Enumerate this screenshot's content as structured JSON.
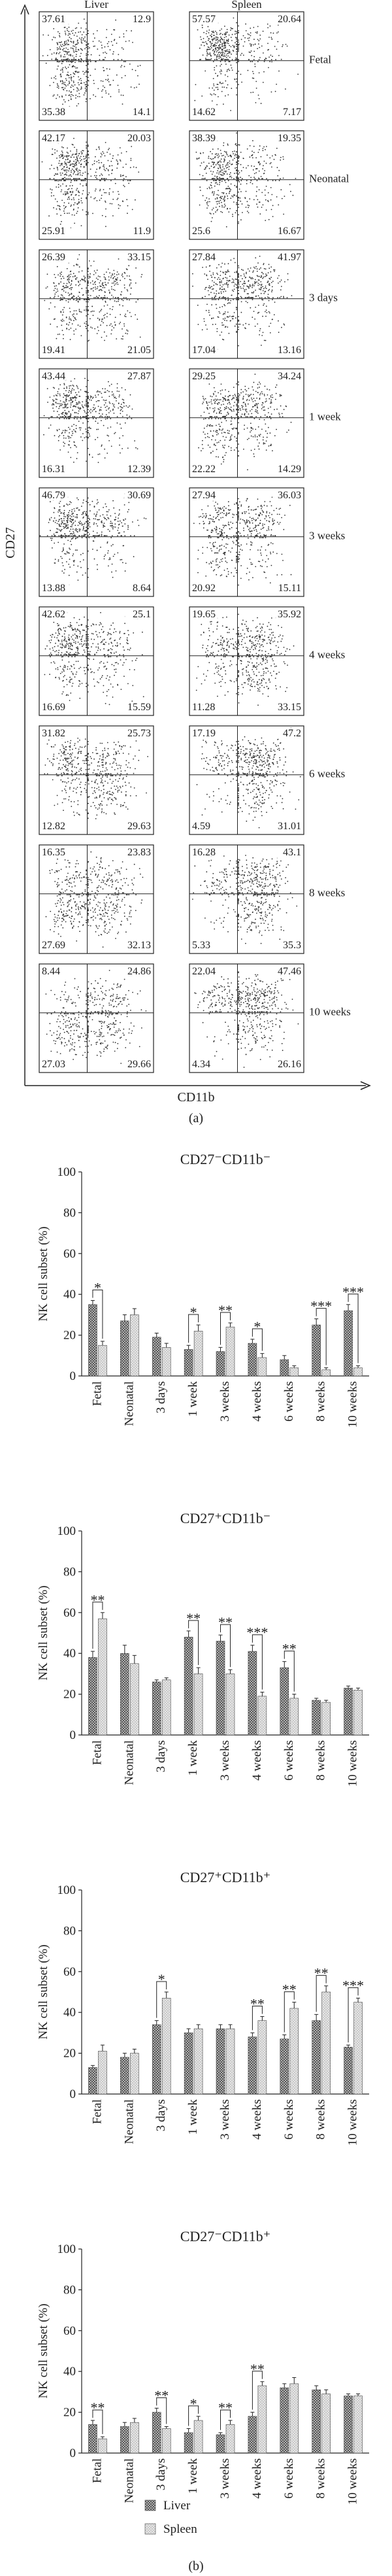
{
  "labels": {
    "panel_a": "(a)",
    "panel_b": "(b)",
    "y_axis": "CD27",
    "x_axis": "CD11b"
  },
  "flow": {
    "columns": [
      "Liver",
      "Spleen"
    ],
    "rows": [
      {
        "label": "Fetal",
        "liver": [
          37.61,
          12.9,
          35.38,
          14.1
        ],
        "spleen": [
          57.57,
          20.64,
          14.62,
          7.17
        ]
      },
      {
        "label": "Neonatal",
        "liver": [
          42.17,
          20.03,
          25.91,
          11.9
        ],
        "spleen": [
          38.39,
          19.35,
          25.6,
          16.67
        ]
      },
      {
        "label": "3 days",
        "liver": [
          26.39,
          33.15,
          19.41,
          21.05
        ],
        "spleen": [
          27.84,
          41.97,
          17.04,
          13.16
        ]
      },
      {
        "label": "1 week",
        "liver": [
          43.44,
          27.87,
          16.31,
          12.39
        ],
        "spleen": [
          29.25,
          34.24,
          22.22,
          14.29
        ]
      },
      {
        "label": "3 weeks",
        "liver": [
          46.79,
          30.69,
          13.88,
          8.64
        ],
        "spleen": [
          27.94,
          36.03,
          20.92,
          15.11
        ]
      },
      {
        "label": "4 weeks",
        "liver": [
          42.62,
          25.1,
          16.69,
          15.59
        ],
        "spleen": [
          19.65,
          35.92,
          11.28,
          33.15
        ]
      },
      {
        "label": "6 weeks",
        "liver": [
          31.82,
          25.73,
          12.82,
          29.63
        ],
        "spleen": [
          17.19,
          47.2,
          4.59,
          31.01
        ]
      },
      {
        "label": "8 weeks",
        "liver": [
          16.35,
          23.83,
          27.69,
          32.13
        ],
        "spleen": [
          16.28,
          43.1,
          5.33,
          35.3
        ]
      },
      {
        "label": "10 weeks",
        "liver": [
          8.44,
          24.86,
          27.03,
          29.66
        ],
        "spleen": [
          22.04,
          47.46,
          4.34,
          26.16
        ]
      }
    ]
  },
  "chart_data": [
    {
      "type": "bar",
      "title": "CD27⁻CD11b⁻",
      "y_label": "NK cell subset (%)",
      "categories": [
        "Fetal",
        "Neonatal",
        "3 days",
        "1 week",
        "3 weeks",
        "4 weeks",
        "6 weeks",
        "8 weeks",
        "10 weeks"
      ],
      "ylim": [
        0,
        100
      ],
      "yticks": [
        0,
        20,
        40,
        60,
        80,
        100
      ],
      "series": [
        {
          "name": "Liver",
          "color": "#555555",
          "values": [
            35,
            27,
            19,
            13,
            12,
            16,
            8,
            25,
            32
          ],
          "errors": [
            2,
            3,
            2,
            2,
            2,
            2,
            2,
            3,
            3
          ]
        },
        {
          "name": "Spleen",
          "color": "#c8c8c8",
          "values": [
            15,
            30,
            14,
            22,
            24,
            9,
            4,
            3,
            4
          ],
          "errors": [
            2,
            3,
            2,
            3,
            2,
            2,
            1,
            1,
            1
          ]
        }
      ],
      "annotations": [
        {
          "category": "Fetal",
          "text": "*"
        },
        {
          "category": "1 week",
          "text": "*"
        },
        {
          "category": "3 weeks",
          "text": "**"
        },
        {
          "category": "4 weeks",
          "text": "*"
        },
        {
          "category": "8 weeks",
          "text": "***"
        },
        {
          "category": "10 weeks",
          "text": "***"
        }
      ]
    },
    {
      "type": "bar",
      "title": "CD27⁺CD11b⁻",
      "y_label": "NK cell subset (%)",
      "categories": [
        "Fetal",
        "Neonatal",
        "3 days",
        "1 week",
        "3 weeks",
        "4 weeks",
        "6 weeks",
        "8 weeks",
        "10 weeks"
      ],
      "ylim": [
        0,
        100
      ],
      "yticks": [
        0,
        20,
        40,
        60,
        80,
        100
      ],
      "series": [
        {
          "name": "Liver",
          "color": "#555555",
          "values": [
            38,
            40,
            26,
            48,
            46,
            41,
            33,
            17,
            23
          ],
          "errors": [
            3,
            4,
            1,
            3,
            3,
            3,
            3,
            1,
            1
          ]
        },
        {
          "name": "Spleen",
          "color": "#c8c8c8",
          "values": [
            57,
            35,
            27,
            30,
            30,
            19,
            18,
            16,
            22
          ],
          "errors": [
            3,
            4,
            1,
            3,
            2,
            2,
            2,
            1,
            1
          ]
        }
      ],
      "annotations": [
        {
          "category": "Fetal",
          "text": "**"
        },
        {
          "category": "1 week",
          "text": "**"
        },
        {
          "category": "3 weeks",
          "text": "**"
        },
        {
          "category": "4 weeks",
          "text": "***"
        },
        {
          "category": "6 weeks",
          "text": "**"
        }
      ]
    },
    {
      "type": "bar",
      "title": "CD27⁺CD11b⁺",
      "y_label": "NK cell subset (%)",
      "categories": [
        "Fetal",
        "Neonatal",
        "3 days",
        "1 week",
        "3 weeks",
        "4 weeks",
        "6 weeks",
        "8 weeks",
        "10 weeks"
      ],
      "ylim": [
        0,
        100
      ],
      "yticks": [
        0,
        20,
        40,
        60,
        80,
        100
      ],
      "series": [
        {
          "name": "Liver",
          "color": "#555555",
          "values": [
            13,
            18,
            34,
            30,
            32,
            28,
            27,
            36,
            23
          ],
          "errors": [
            1,
            2,
            2,
            2,
            2,
            2,
            2,
            3,
            1
          ]
        },
        {
          "name": "Spleen",
          "color": "#c8c8c8",
          "values": [
            21,
            20,
            47,
            32,
            32,
            36,
            42,
            50,
            45
          ],
          "errors": [
            3,
            2,
            3,
            2,
            2,
            2,
            3,
            3,
            2
          ]
        }
      ],
      "annotations": [
        {
          "category": "3 days",
          "text": "*"
        },
        {
          "category": "4 weeks",
          "text": "**"
        },
        {
          "category": "6 weeks",
          "text": "**"
        },
        {
          "category": "8 weeks",
          "text": "**"
        },
        {
          "category": "10 weeks",
          "text": "***"
        }
      ]
    },
    {
      "type": "bar",
      "title": "CD27⁻CD11b⁺",
      "y_label": "NK cell subset (%)",
      "categories": [
        "Fetal",
        "Neonatal",
        "3 days",
        "1 week",
        "3 weeks",
        "4 weeks",
        "6 weeks",
        "8 weeks",
        "10 weeks"
      ],
      "ylim": [
        0,
        100
      ],
      "yticks": [
        0,
        20,
        40,
        60,
        80,
        100
      ],
      "series": [
        {
          "name": "Liver",
          "color": "#555555",
          "values": [
            14,
            13,
            20,
            10,
            9,
            18,
            32,
            31,
            28
          ],
          "errors": [
            2,
            2,
            2,
            2,
            1,
            2,
            2,
            2,
            1
          ]
        },
        {
          "name": "Spleen",
          "color": "#c8c8c8",
          "values": [
            7,
            15,
            12,
            16,
            14,
            33,
            34,
            29,
            28
          ],
          "errors": [
            1,
            2,
            1,
            2,
            2,
            2,
            3,
            2,
            1
          ]
        }
      ],
      "annotations": [
        {
          "category": "Fetal",
          "text": "**"
        },
        {
          "category": "3 days",
          "text": "**"
        },
        {
          "category": "1 week",
          "text": "*"
        },
        {
          "category": "3 weeks",
          "text": "**"
        },
        {
          "category": "4 weeks",
          "text": "**"
        }
      ]
    }
  ]
}
